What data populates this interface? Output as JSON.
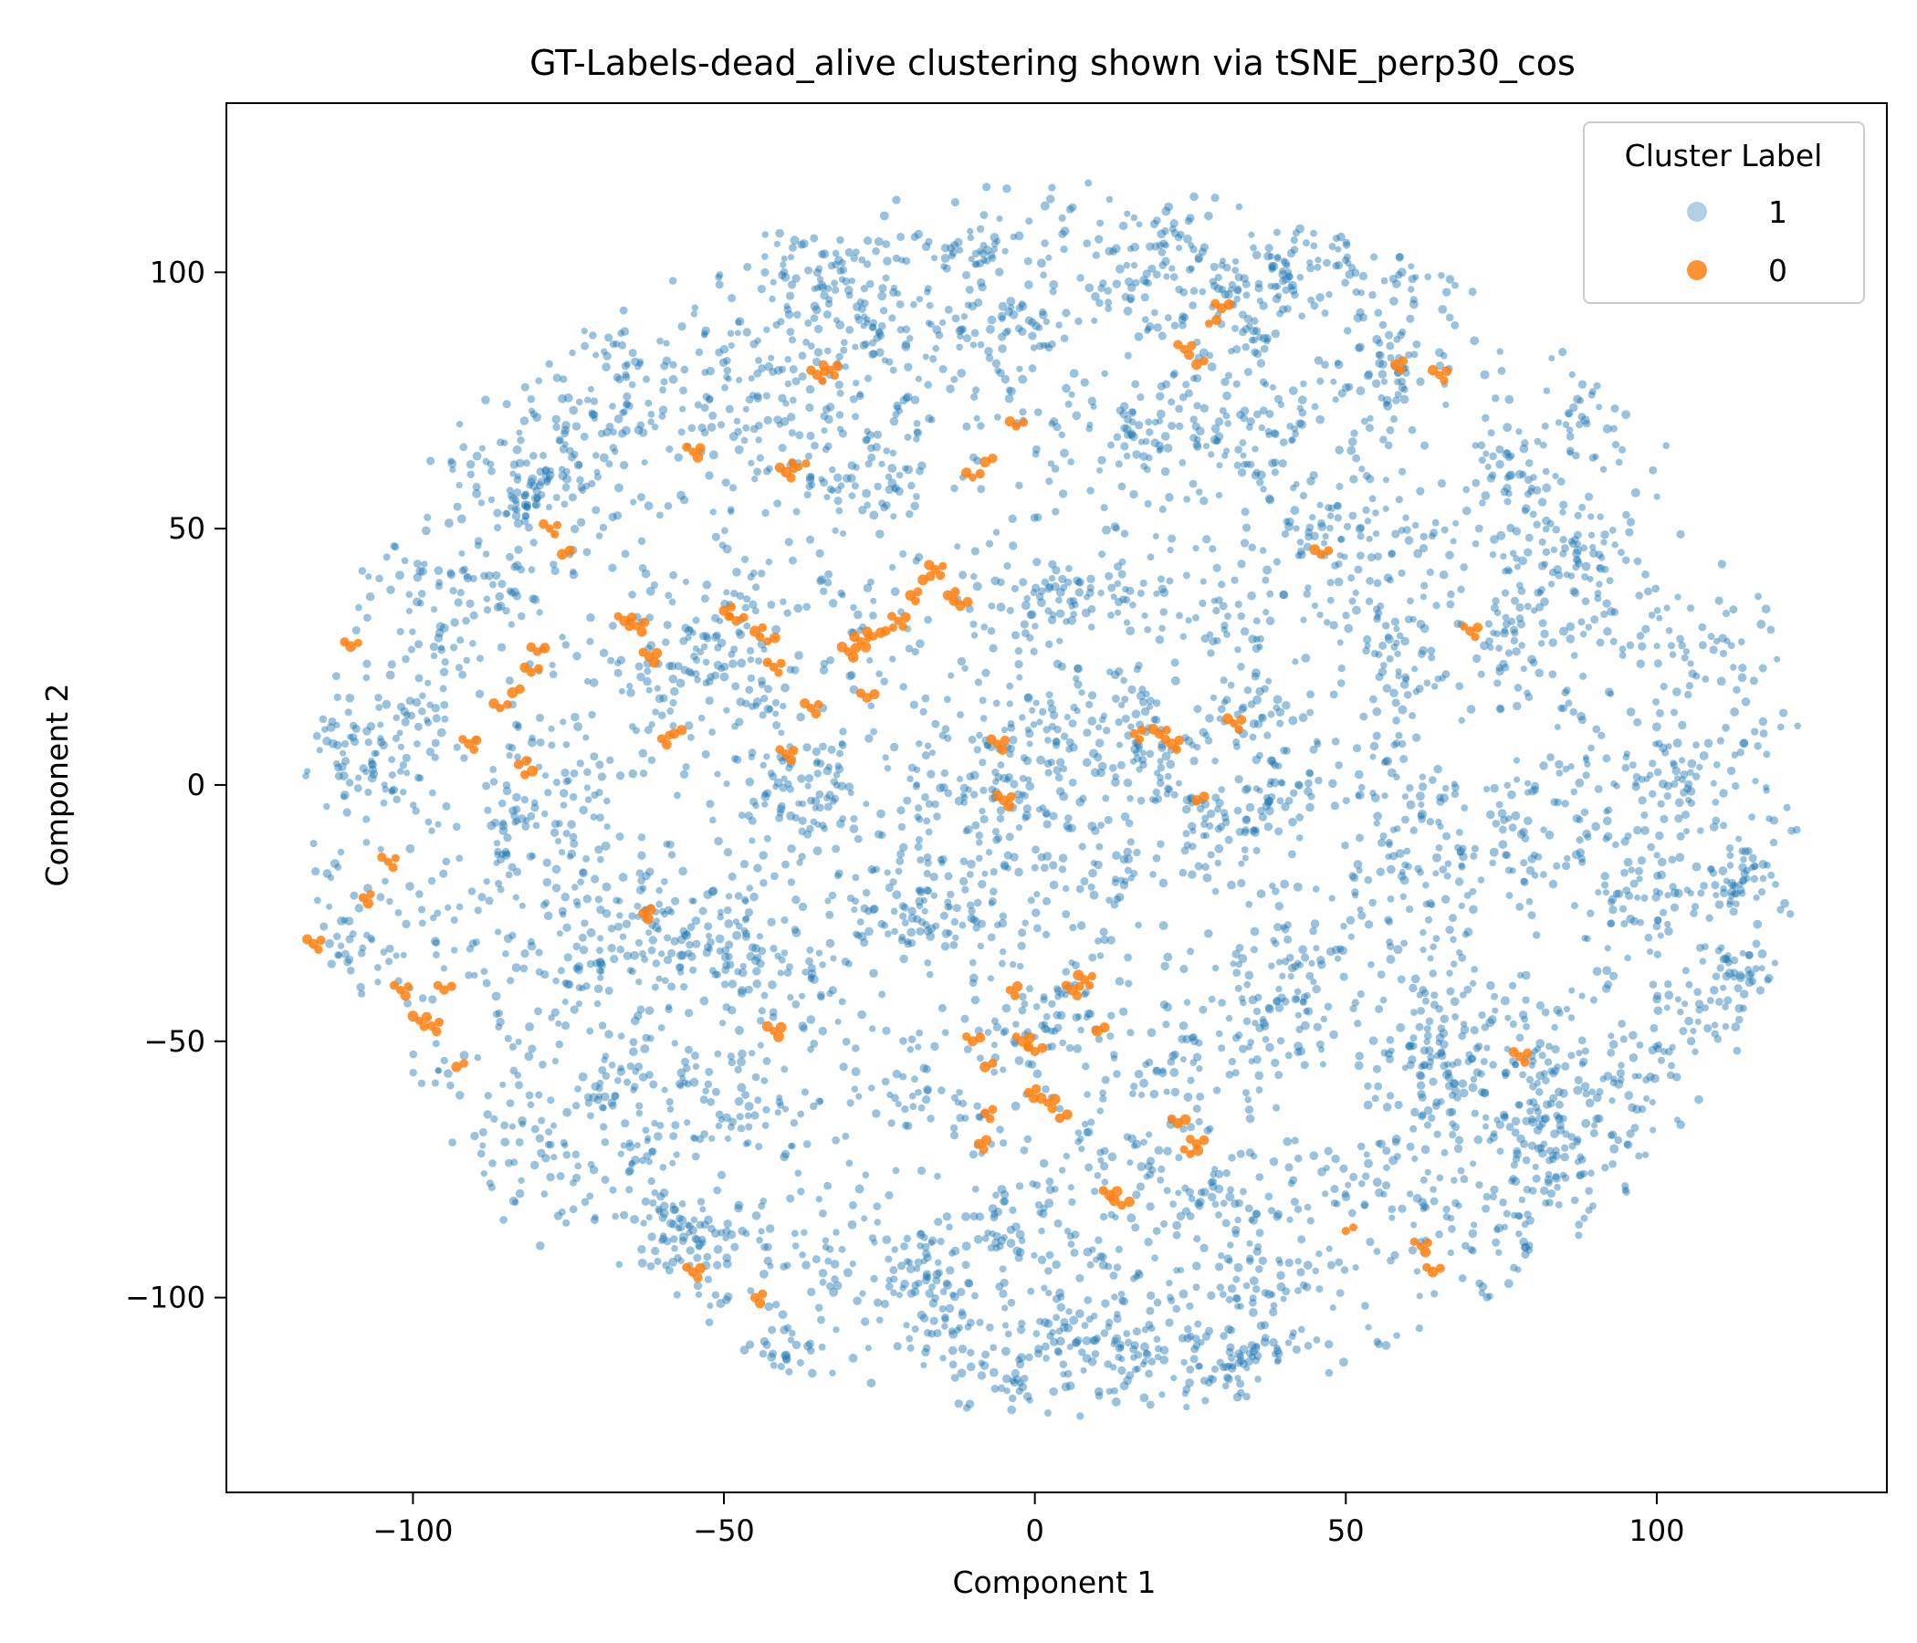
{
  "chart_data": {
    "type": "scatter",
    "title": "GT-Labels-dead_alive clustering shown via tSNE_perp30_cos",
    "xlabel": "Component 1",
    "ylabel": "Component 2",
    "xlim": [
      -130,
      137
    ],
    "ylim": [
      -138,
      133
    ],
    "xticks": [
      -100,
      -50,
      0,
      50,
      100
    ],
    "yticks": [
      -100,
      -50,
      0,
      50,
      100
    ],
    "xtick_labels": [
      "−100",
      "−50",
      "0",
      "50",
      "100"
    ],
    "ytick_labels": [
      "−100",
      "−50",
      "0",
      "50",
      "100"
    ],
    "grid": false,
    "legend": {
      "title": "Cluster Label",
      "placement": "upper-right"
    },
    "series": [
      {
        "name": "1",
        "color": "#1f77b4",
        "alpha": 0.45,
        "region": {
          "center": [
            3,
            -3
          ],
          "rx": 116,
          "ry": 116
        },
        "approx_point_count": 6000,
        "sample_points": [
          [
            -115,
            -30
          ],
          [
            -105,
            42
          ],
          [
            -110,
            10
          ],
          [
            -96,
            -30
          ],
          [
            -85,
            40
          ],
          [
            -80,
            -50
          ],
          [
            -75,
            75
          ],
          [
            -68,
            88
          ],
          [
            -60,
            72
          ],
          [
            -55,
            25
          ],
          [
            -48,
            -70
          ],
          [
            -40,
            82
          ],
          [
            -30,
            60
          ],
          [
            -22,
            100
          ],
          [
            -12,
            -105
          ],
          [
            -5,
            -118
          ],
          [
            0,
            88
          ],
          [
            8,
            115
          ],
          [
            15,
            -30
          ],
          [
            22,
            110
          ],
          [
            30,
            70
          ],
          [
            38,
            -95
          ],
          [
            45,
            95
          ],
          [
            52,
            40
          ],
          [
            60,
            105
          ],
          [
            68,
            20
          ],
          [
            75,
            -60
          ],
          [
            83,
            88
          ],
          [
            90,
            45
          ],
          [
            96,
            -50
          ],
          [
            103,
            68
          ],
          [
            108,
            25
          ],
          [
            118,
            15
          ],
          [
            120,
            -5
          ],
          [
            -38,
            -110
          ],
          [
            60,
            -110
          ],
          [
            30,
            -113
          ],
          [
            -35,
            -15
          ],
          [
            10,
            10
          ],
          [
            -10,
            -60
          ],
          [
            40,
            -40
          ],
          [
            70,
            -10
          ]
        ]
      },
      {
        "name": "0",
        "color": "#ff7f0e",
        "alpha": 0.85,
        "points": [
          [
            -116,
            -31
          ],
          [
            -110,
            27
          ],
          [
            -108,
            -22
          ],
          [
            -104,
            -15
          ],
          [
            -102,
            -40
          ],
          [
            -99,
            -46
          ],
          [
            -97,
            -47
          ],
          [
            -95,
            -40
          ],
          [
            -93,
            -55
          ],
          [
            -91,
            8
          ],
          [
            -86,
            15
          ],
          [
            -84,
            18
          ],
          [
            -83,
            4
          ],
          [
            -82,
            2
          ],
          [
            -81,
            22
          ],
          [
            -80,
            26
          ],
          [
            -78,
            50
          ],
          [
            -76,
            45
          ],
          [
            -66,
            32
          ],
          [
            -64,
            31
          ],
          [
            -62,
            25
          ],
          [
            -60,
            9
          ],
          [
            -58,
            10
          ],
          [
            -55,
            65
          ],
          [
            -50,
            34
          ],
          [
            -48,
            32
          ],
          [
            -45,
            30
          ],
          [
            -43,
            28
          ],
          [
            -42,
            23
          ],
          [
            -40,
            61
          ],
          [
            -38,
            62
          ],
          [
            -36,
            15
          ],
          [
            -35,
            80
          ],
          [
            -33,
            81
          ],
          [
            -30,
            26
          ],
          [
            -28,
            28
          ],
          [
            -26,
            29
          ],
          [
            -24,
            30
          ],
          [
            -22,
            32
          ],
          [
            -20,
            37
          ],
          [
            -18,
            40
          ],
          [
            -16,
            42
          ],
          [
            -14,
            37
          ],
          [
            -12,
            35
          ],
          [
            -10,
            60
          ],
          [
            -8,
            63
          ],
          [
            -6,
            8
          ],
          [
            -5,
            -3
          ],
          [
            -3,
            70
          ],
          [
            -4,
            -40
          ],
          [
            -2,
            -50
          ],
          [
            0,
            -52
          ],
          [
            -1,
            -60
          ],
          [
            -10,
            -50
          ],
          [
            -8,
            -55
          ],
          [
            -8,
            -64
          ],
          [
            -9,
            -70
          ],
          [
            2,
            -62
          ],
          [
            4,
            -65
          ],
          [
            6,
            -40
          ],
          [
            8,
            -38
          ],
          [
            12,
            -80
          ],
          [
            14,
            -82
          ],
          [
            16,
            10
          ],
          [
            20,
            10
          ],
          [
            22,
            8
          ],
          [
            24,
            85
          ],
          [
            26,
            82
          ],
          [
            28,
            90
          ],
          [
            30,
            93
          ],
          [
            26,
            -70
          ],
          [
            25,
            -72
          ],
          [
            23,
            -66
          ],
          [
            10,
            -48
          ],
          [
            46,
            45
          ],
          [
            58,
            82
          ],
          [
            65,
            80
          ],
          [
            70,
            30
          ],
          [
            78,
            -53
          ],
          [
            64,
            -95
          ],
          [
            62,
            -90
          ],
          [
            50,
            -87
          ],
          [
            -63,
            -25
          ],
          [
            -55,
            -95
          ],
          [
            -45,
            -100
          ],
          [
            -42,
            -48
          ],
          [
            26,
            -3
          ],
          [
            32,
            12
          ],
          [
            -27,
            17
          ],
          [
            -40,
            6
          ]
        ]
      }
    ]
  }
}
